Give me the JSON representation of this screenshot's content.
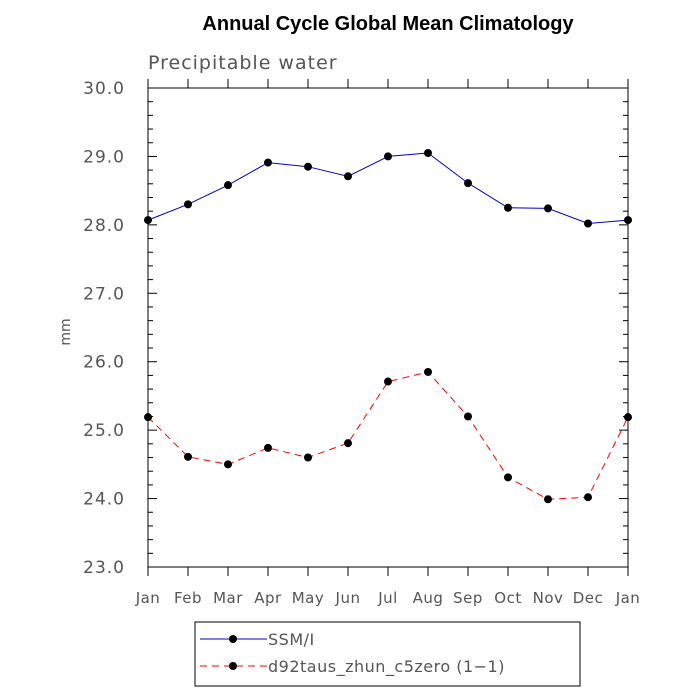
{
  "chart_data": {
    "type": "line",
    "title": "Annual Cycle Global Mean Climatology",
    "subtitle": "Precipitable water",
    "xlabel": "",
    "ylabel": "mm",
    "categories": [
      "Jan",
      "Feb",
      "Mar",
      "Apr",
      "May",
      "Jun",
      "Jul",
      "Aug",
      "Sep",
      "Oct",
      "Nov",
      "Dec",
      "Jan"
    ],
    "ylim": [
      23.0,
      30.0
    ],
    "yticks": [
      "23.0",
      "24.0",
      "25.0",
      "26.0",
      "27.0",
      "28.0",
      "29.0",
      "30.0"
    ],
    "grid": false,
    "legend_position": "bottom",
    "series": [
      {
        "name": "SSM/I",
        "color": "#0000cc",
        "line_style": "solid",
        "marker": "filled-circle",
        "values": [
          28.07,
          28.3,
          28.58,
          28.91,
          28.85,
          28.71,
          29.0,
          29.05,
          28.61,
          28.25,
          28.24,
          28.02,
          28.07
        ]
      },
      {
        "name": "d92taus_zhun_c5zero (1−1)",
        "color": "#ff0000",
        "line_style": "dashed",
        "marker": "filled-circle",
        "values": [
          25.19,
          24.61,
          24.5,
          24.74,
          24.6,
          24.81,
          25.71,
          25.85,
          25.2,
          24.31,
          23.99,
          24.02,
          25.19
        ]
      }
    ]
  }
}
